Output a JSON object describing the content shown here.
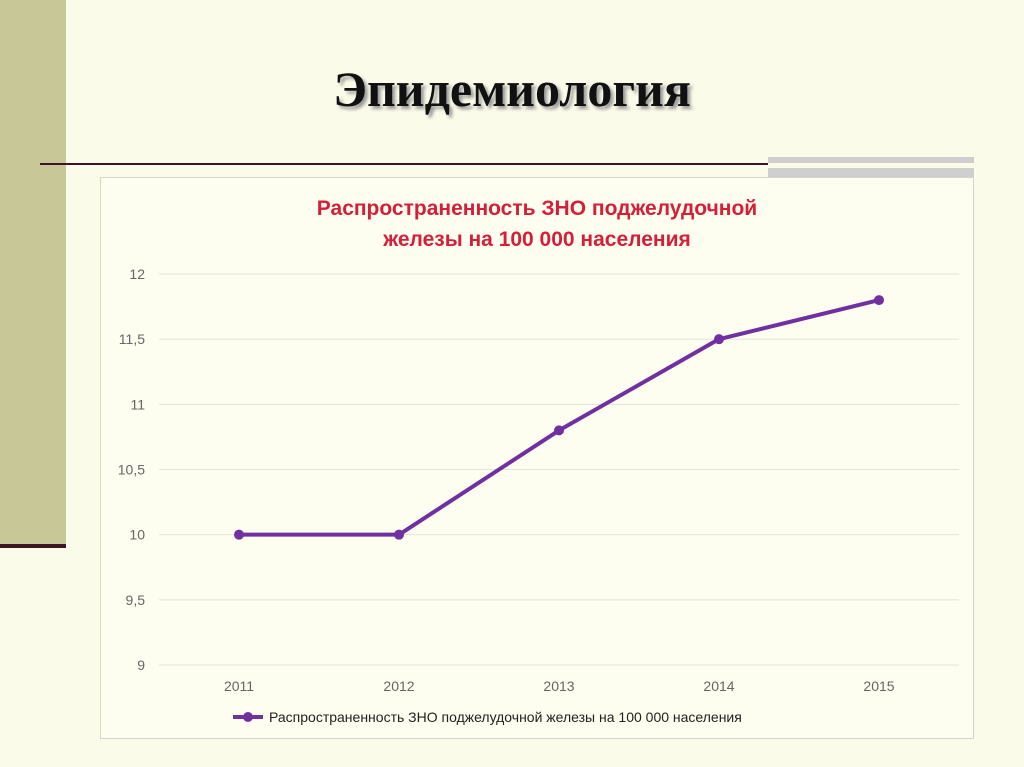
{
  "slide": {
    "title": "Эпидемиология"
  },
  "colors": {
    "background": "#fbfbe9",
    "side_band": "#c8c797",
    "rule": "#3c1626",
    "chart_title": "#d51f38",
    "series_line": "#7030a0",
    "gridline": "#e3e3d8"
  },
  "chart_data": {
    "type": "line",
    "title_lines": [
      "Распространенность ЗНО поджелудочной",
      "железы на 100 000 населения"
    ],
    "categories": [
      "2011",
      "2012",
      "2013",
      "2014",
      "2015"
    ],
    "series": [
      {
        "name": "Распространенность ЗНО поджелудочной железы на 100 000 населения",
        "values": [
          10,
          10,
          10.8,
          11.5,
          11.8
        ]
      }
    ],
    "y_ticks": [
      "9",
      "9,5",
      "10",
      "10,5",
      "11",
      "11,5",
      "12"
    ],
    "ylim": [
      9,
      12
    ],
    "grid": "horizontal",
    "legend_position": "bottom"
  }
}
